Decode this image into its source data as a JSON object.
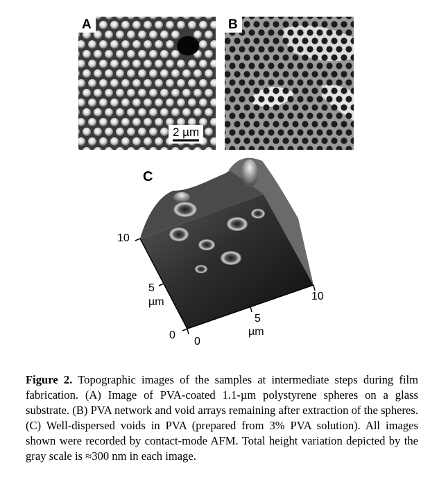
{
  "panels": {
    "a_label": "A",
    "b_label": "B",
    "c_label": "C",
    "scale_bar_label": "2 µm"
  },
  "axes_3d": {
    "y_ticks": [
      "10",
      "5",
      "0"
    ],
    "x_ticks": [
      "0",
      "5",
      "10"
    ],
    "y_unit": "µm",
    "x_unit": "µm"
  },
  "caption": {
    "label": "Figure 2.",
    "text": "Topographic images of the samples at intermediate steps during film fabrication. (A) Image of PVA-coated 1.1-µm polystyrene spheres on a glass substrate. (B) PVA network and void arrays remaining after extraction of the spheres. (C) Well-dispersed voids in PVA (prepared from 3% PVA solution). All images shown were recorded by contact-mode AFM. Total height variation depicted by the gray scale is ≈300 nm in each image."
  }
}
